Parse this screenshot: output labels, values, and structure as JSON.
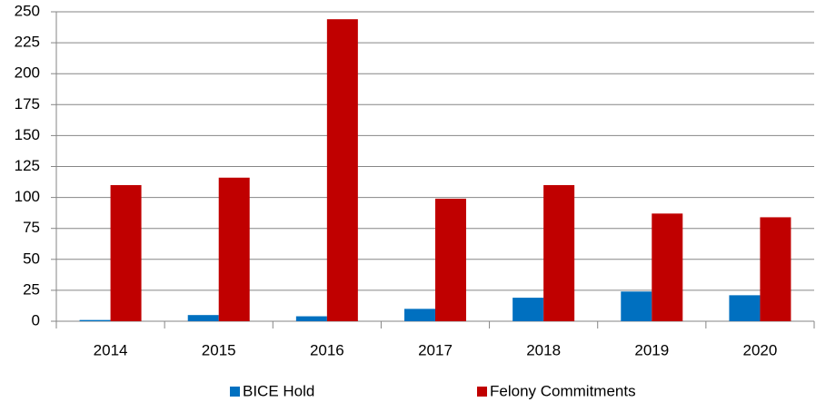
{
  "chart_data": {
    "type": "bar",
    "categories": [
      "2014",
      "2015",
      "2016",
      "2017",
      "2018",
      "2019",
      "2020"
    ],
    "series": [
      {
        "name": "BICE Hold",
        "color": "#0070c0",
        "values": [
          1,
          5,
          4,
          10,
          19,
          24,
          21
        ]
      },
      {
        "name": "Felony Commitments",
        "color": "#c00000",
        "values": [
          110,
          116,
          244,
          99,
          110,
          87,
          84
        ]
      }
    ],
    "ylim": [
      0,
      250
    ],
    "yticks": [
      0,
      25,
      50,
      75,
      100,
      125,
      150,
      175,
      200,
      225,
      250
    ],
    "grid": true,
    "legend": "bottom"
  }
}
